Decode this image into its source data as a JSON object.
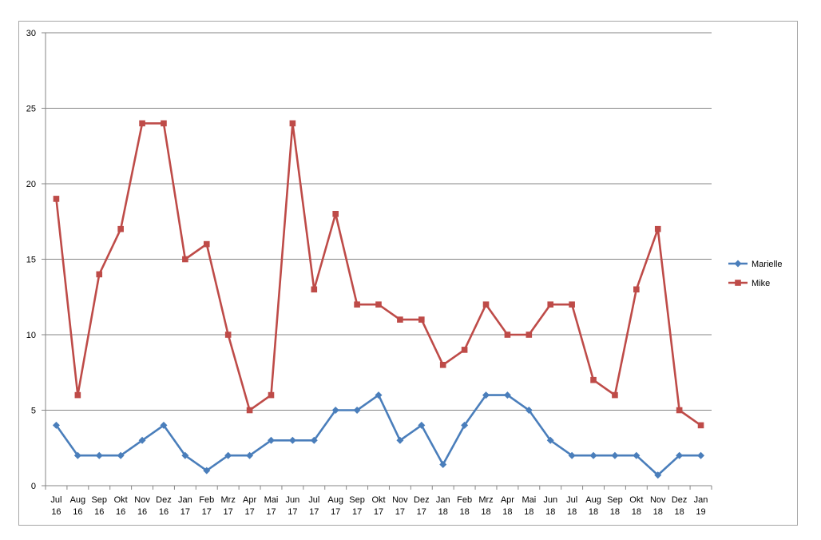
{
  "chart_data": {
    "type": "line",
    "categories": [
      [
        "Jul",
        "16"
      ],
      [
        "Aug",
        "16"
      ],
      [
        "Sep",
        "16"
      ],
      [
        "Okt",
        "16"
      ],
      [
        "Nov",
        "16"
      ],
      [
        "Dez",
        "16"
      ],
      [
        "Jan",
        "17"
      ],
      [
        "Feb",
        "17"
      ],
      [
        "Mrz",
        "17"
      ],
      [
        "Apr",
        "17"
      ],
      [
        "Mai",
        "17"
      ],
      [
        "Jun",
        "17"
      ],
      [
        "Jul",
        "17"
      ],
      [
        "Aug",
        "17"
      ],
      [
        "Sep",
        "17"
      ],
      [
        "Okt",
        "17"
      ],
      [
        "Nov",
        "17"
      ],
      [
        "Dez",
        "17"
      ],
      [
        "Jan",
        "18"
      ],
      [
        "Feb",
        "18"
      ],
      [
        "Mrz",
        "18"
      ],
      [
        "Apr",
        "18"
      ],
      [
        "Mai",
        "18"
      ],
      [
        "Jun",
        "18"
      ],
      [
        "Jul",
        "18"
      ],
      [
        "Aug",
        "18"
      ],
      [
        "Sep",
        "18"
      ],
      [
        "Okt",
        "18"
      ],
      [
        "Nov",
        "18"
      ],
      [
        "Dez",
        "18"
      ],
      [
        "Jan",
        "19"
      ]
    ],
    "series": [
      {
        "name": "Marielle",
        "color": "#4a7ebb",
        "marker": "diamond",
        "values": [
          4,
          2,
          2,
          2,
          3,
          4,
          2,
          1,
          2,
          2,
          3,
          3,
          3,
          5,
          5,
          6,
          3,
          4,
          1.4,
          4,
          6,
          6,
          5,
          3,
          2,
          2,
          2,
          2,
          0.7,
          2,
          2
        ]
      },
      {
        "name": "Mike",
        "color": "#be4b48",
        "marker": "square",
        "values": [
          19,
          6,
          14,
          17,
          24,
          24,
          15,
          16,
          10,
          5,
          6,
          24,
          13,
          18,
          12,
          12,
          11,
          11,
          8,
          9,
          12,
          10,
          10,
          12,
          12,
          7,
          6,
          13,
          17,
          5,
          4
        ]
      }
    ],
    "ylim": [
      0,
      30
    ],
    "yticks": [
      0,
      5,
      10,
      15,
      20,
      25,
      30
    ],
    "grid": true,
    "legend": "right",
    "title": "",
    "xlabel": "",
    "ylabel": ""
  }
}
